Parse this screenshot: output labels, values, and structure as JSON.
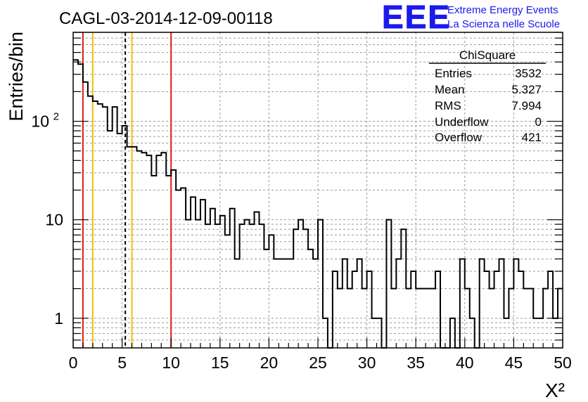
{
  "chart_data": {
    "type": "histogram",
    "title": "CAGL-03-2014-12-09-00118",
    "xlabel": "X²",
    "ylabel": "Entries/bin",
    "xlim": [
      0,
      50
    ],
    "ylim": [
      0.5,
      800
    ],
    "y_scale": "log",
    "grid": true,
    "bin_width": 0.5,
    "x_ticks": [
      "0",
      "5",
      "10",
      "15",
      "20",
      "25",
      "30",
      "35",
      "40",
      "45",
      "50"
    ],
    "y_ticks": [
      {
        "value": 1,
        "label": "1"
      },
      {
        "value": 10,
        "label": "10"
      },
      {
        "value": 100,
        "label": "10",
        "sup": "2"
      }
    ],
    "counts": [
      420,
      380,
      250,
      180,
      160,
      150,
      140,
      80,
      140,
      75,
      90,
      55,
      55,
      50,
      48,
      45,
      28,
      45,
      48,
      28,
      32,
      20,
      21,
      10,
      17,
      10,
      16,
      9,
      13,
      9,
      11,
      7,
      13,
      4,
      9,
      10,
      9,
      12,
      9,
      5,
      7,
      4,
      4,
      4,
      4,
      8,
      10,
      8,
      5,
      4,
      10,
      1,
      0,
      3,
      2,
      4,
      2,
      3,
      4,
      2,
      3,
      1,
      1,
      0,
      10,
      2,
      4,
      8,
      2,
      3,
      2,
      2,
      2,
      2,
      3,
      0,
      0,
      1,
      0,
      4,
      2,
      1,
      0,
      4,
      3,
      2,
      3,
      4,
      1,
      2,
      4,
      3,
      2,
      2,
      1,
      1,
      2,
      3,
      1,
      2
    ],
    "vlines": [
      {
        "x": 1.0,
        "color": "#e11b1b",
        "style": "solid"
      },
      {
        "x": 2.0,
        "color": "#f0c000",
        "style": "solid"
      },
      {
        "x": 5.327,
        "color": "#000000",
        "style": "dashed"
      },
      {
        "x": 6.0,
        "color": "#f0c000",
        "style": "solid"
      },
      {
        "x": 10.0,
        "color": "#e11b1b",
        "style": "solid"
      }
    ]
  },
  "stats_box": {
    "title": "ChiSquare",
    "rows": [
      {
        "label": "Entries",
        "value": "3532"
      },
      {
        "label": "Mean",
        "value": "5.327"
      },
      {
        "label": "RMS",
        "value": "7.994"
      },
      {
        "label": "Underflow",
        "value": "0"
      },
      {
        "label": "Overflow",
        "value": "421"
      }
    ]
  },
  "logo": {
    "mark": "EEE",
    "line1": "Extreme Energy Events",
    "line2": "La Scienza nelle Scuole",
    "color": "#1a1aee"
  }
}
